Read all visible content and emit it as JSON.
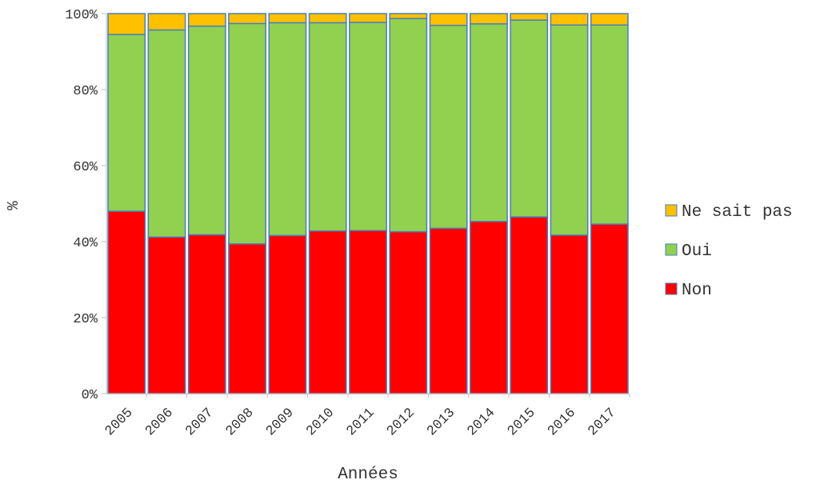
{
  "chart_data": {
    "type": "bar",
    "stacked": true,
    "percent": true,
    "categories": [
      "2005",
      "2006",
      "2007",
      "2008",
      "2009",
      "2010",
      "2011",
      "2012",
      "2013",
      "2014",
      "2015",
      "2016",
      "2017"
    ],
    "series": [
      {
        "name": "Non",
        "color": "#ff0000",
        "values": [
          48.0,
          41.2,
          41.8,
          39.4,
          41.6,
          42.8,
          42.9,
          42.6,
          43.5,
          45.3,
          46.5,
          41.7,
          44.6
        ]
      },
      {
        "name": "Oui",
        "color": "#92d050",
        "values": [
          46.5,
          54.5,
          54.9,
          58.0,
          56.0,
          54.8,
          54.8,
          56.1,
          53.4,
          52.0,
          51.8,
          55.3,
          52.4
        ]
      },
      {
        "name": "Ne sait pas",
        "color": "#ffc000",
        "values": [
          5.5,
          4.3,
          3.3,
          2.6,
          2.4,
          2.4,
          2.3,
          1.3,
          3.1,
          2.7,
          1.7,
          3.0,
          3.0
        ]
      }
    ],
    "legend_order": [
      "Ne sait pas",
      "Oui",
      "Non"
    ],
    "legend_position": "right",
    "xlabel": "Années",
    "ylabel": "%",
    "ylim": [
      0,
      100
    ],
    "yticks": [
      "0%",
      "20%",
      "40%",
      "60%",
      "80%",
      "100%"
    ],
    "grid": false,
    "bar_edge_color": "#4a7ebb"
  }
}
